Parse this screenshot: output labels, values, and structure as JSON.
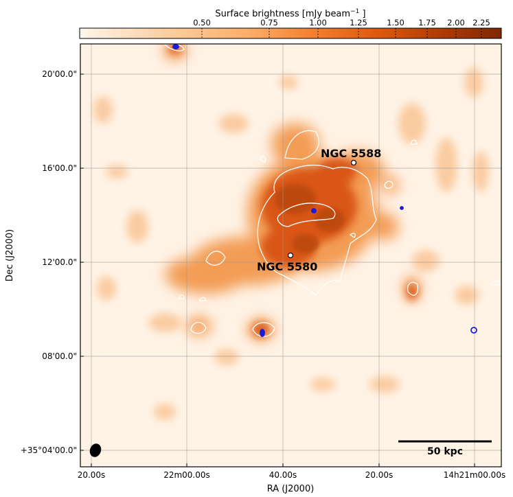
{
  "colorbar": {
    "title": "Surface brightness [mJy beam",
    "title_exp": "−1",
    "title_end": " ]",
    "ticks": [
      "0.50",
      "0.75",
      "1.00",
      "1.25",
      "1.50",
      "1.75",
      "2.00",
      "2.25"
    ],
    "colormap": "Oranges",
    "color_light": "#fff3e6",
    "color_dark": "#7f2704"
  },
  "axes": {
    "xlabel": "RA (J2000)",
    "ylabel": "Dec (J2000)",
    "xticks": [
      "20.00s",
      "22m00.00s",
      "40.00s",
      "20.00s",
      "14h21m00.00s"
    ],
    "yticks": [
      "20'00.0\"",
      "16'00.0\"",
      "12'00.0\"",
      "08'00.0\"",
      "+35°04'00.0\""
    ]
  },
  "annotations": {
    "galaxy_1": "NGC 5588",
    "galaxy_2": "NGC 5580",
    "scalebar": "50 kpc"
  },
  "colors": {
    "contour_white": "#ffffff",
    "contour_blue": "#1a1adb",
    "grid": "#9a9a9a",
    "background": "#fff3e6"
  }
}
